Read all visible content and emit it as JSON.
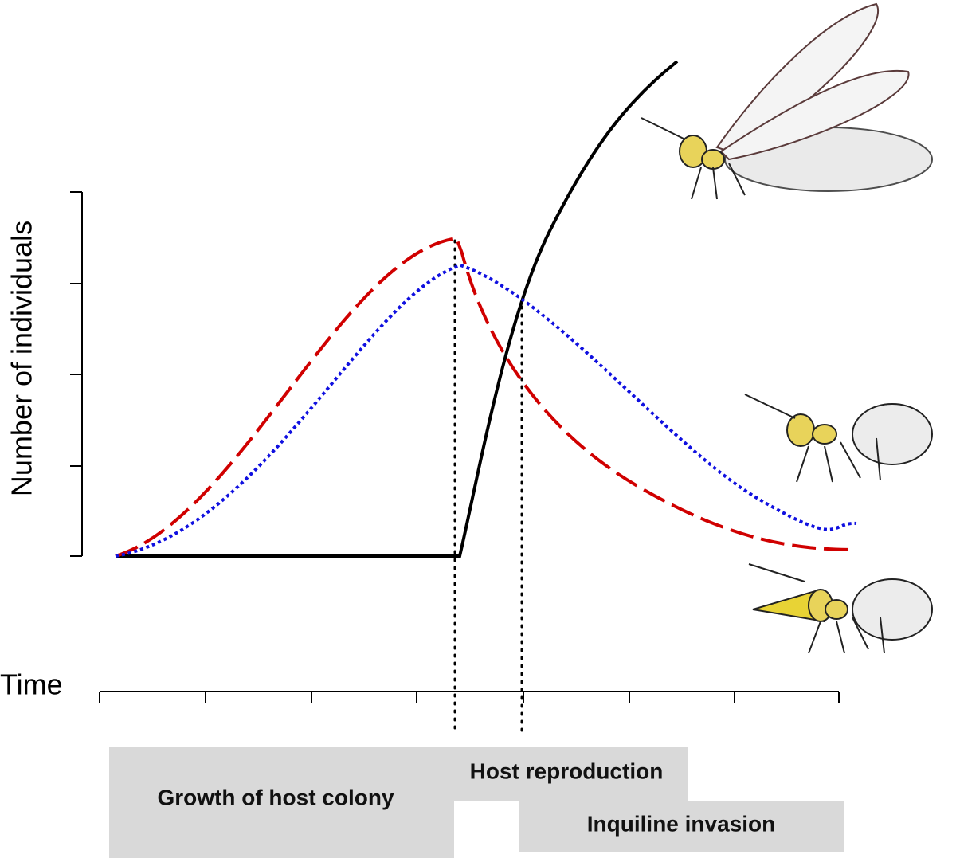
{
  "y_axis_label": "Number of individuals",
  "x_axis_label": "Time",
  "phases": [
    {
      "label": "Growth of host colony"
    },
    {
      "label": "Host reproduction"
    },
    {
      "label": "Inquiline invasion"
    }
  ]
}
